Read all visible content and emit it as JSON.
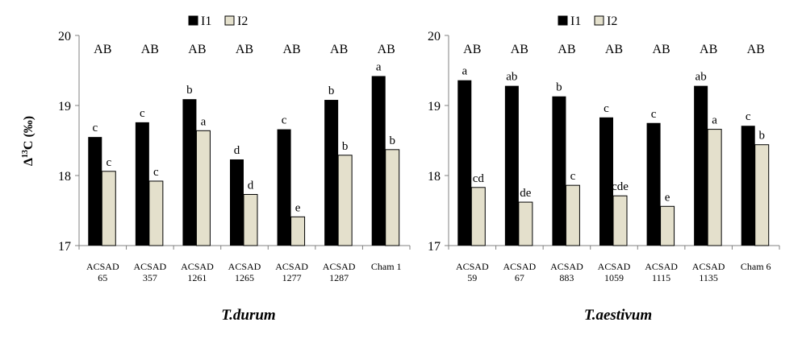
{
  "y_axis_label": {
    "main": "Δ",
    "sup": "13",
    "rest": "C (‰)"
  },
  "legend": [
    {
      "name": "I1",
      "color": "#000000"
    },
    {
      "name": "I2",
      "color": "#e4e0cc"
    }
  ],
  "colors": {
    "I1": "#000000",
    "I2": "#e4e0cc",
    "axis": "#808080"
  },
  "chart_data": [
    {
      "type": "bar",
      "title": "T.durum",
      "xlabel": "",
      "ylabel": "Δ13C (‰)",
      "ylim": [
        17,
        20
      ],
      "yticks": [
        "17",
        "18",
        "19",
        "20"
      ],
      "grid": false,
      "legend_position": "top",
      "group_labels": [
        "AB",
        "AB",
        "AB",
        "AB",
        "AB",
        "AB",
        "AB"
      ],
      "categories": [
        [
          "ACSAD",
          "65"
        ],
        [
          "ACSAD",
          "357"
        ],
        [
          "ACSAD",
          "1261"
        ],
        [
          "ACSAD",
          "1265"
        ],
        [
          "ACSAD",
          "1277"
        ],
        [
          "ACSAD",
          "1287"
        ],
        [
          "Cham 1",
          ""
        ]
      ],
      "series": [
        {
          "name": "I1",
          "values": [
            18.55,
            18.76,
            19.09,
            18.23,
            18.66,
            19.08,
            19.42
          ],
          "labels": [
            "c",
            "c",
            "b",
            "d",
            "c",
            "b",
            "a"
          ]
        },
        {
          "name": "I2",
          "values": [
            18.06,
            17.92,
            18.64,
            17.73,
            17.41,
            18.29,
            18.37
          ],
          "labels": [
            "c",
            "c",
            "a",
            "d",
            "e",
            "b",
            "b"
          ]
        }
      ]
    },
    {
      "type": "bar",
      "title": "T.aestivum",
      "xlabel": "",
      "ylabel": "",
      "ylim": [
        17,
        20
      ],
      "yticks": [
        "17",
        "18",
        "19",
        "20"
      ],
      "grid": false,
      "legend_position": "top",
      "group_labels": [
        "AB",
        "AB",
        "AB",
        "AB",
        "AB",
        "AB",
        "AB"
      ],
      "categories": [
        [
          "ACSAD",
          "59"
        ],
        [
          "ACSAD",
          "67"
        ],
        [
          "ACSAD",
          "883"
        ],
        [
          "ACSAD",
          "1059"
        ],
        [
          "ACSAD",
          "1115"
        ],
        [
          "ACSAD",
          "1135"
        ],
        [
          "Cham 6",
          ""
        ]
      ],
      "series": [
        {
          "name": "I1",
          "values": [
            19.36,
            19.28,
            19.13,
            18.83,
            18.75,
            19.28,
            18.71
          ],
          "labels": [
            "a",
            "ab",
            "b",
            "c",
            "c",
            "ab",
            "c"
          ]
        },
        {
          "name": "I2",
          "values": [
            17.83,
            17.62,
            17.86,
            17.71,
            17.56,
            18.66,
            18.44
          ],
          "labels": [
            "cd",
            "de",
            "c",
            "cde",
            "e",
            "a",
            "b"
          ]
        }
      ]
    }
  ]
}
